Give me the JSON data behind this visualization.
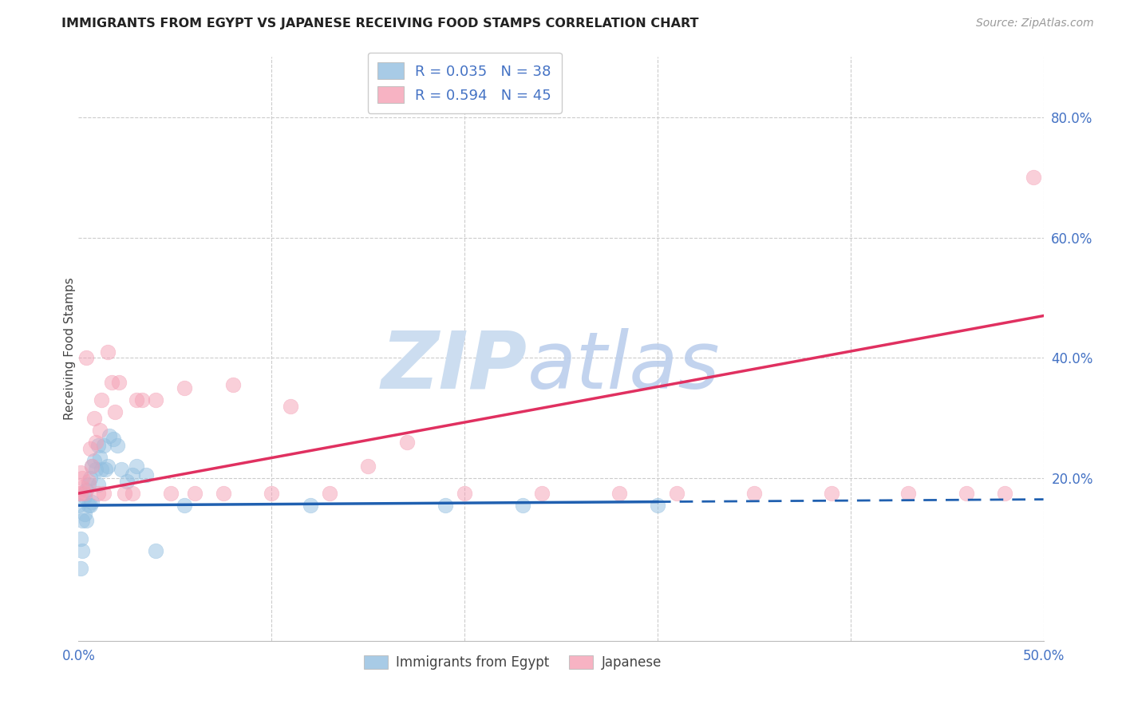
{
  "title": "IMMIGRANTS FROM EGYPT VS JAPANESE RECEIVING FOOD STAMPS CORRELATION CHART",
  "source": "Source: ZipAtlas.com",
  "ylabel": "Receiving Food Stamps",
  "xlim": [
    0.0,
    0.5
  ],
  "ylim": [
    -0.07,
    0.9
  ],
  "legend1_label": "R = 0.035   N = 38",
  "legend2_label": "R = 0.594   N = 45",
  "blue_color": "#92bfe0",
  "pink_color": "#f5a0b5",
  "trendline_blue_color": "#2060b0",
  "trendline_pink_color": "#e03060",
  "egypt_x": [
    0.0,
    0.001,
    0.001,
    0.002,
    0.002,
    0.003,
    0.003,
    0.004,
    0.004,
    0.005,
    0.005,
    0.006,
    0.006,
    0.007,
    0.007,
    0.008,
    0.009,
    0.01,
    0.01,
    0.011,
    0.012,
    0.013,
    0.014,
    0.015,
    0.016,
    0.018,
    0.02,
    0.022,
    0.025,
    0.028,
    0.03,
    0.035,
    0.04,
    0.055,
    0.12,
    0.19,
    0.23,
    0.3
  ],
  "egypt_y": [
    0.155,
    0.05,
    0.1,
    0.13,
    0.08,
    0.17,
    0.14,
    0.18,
    0.13,
    0.19,
    0.155,
    0.2,
    0.155,
    0.22,
    0.16,
    0.23,
    0.215,
    0.255,
    0.19,
    0.235,
    0.215,
    0.255,
    0.215,
    0.22,
    0.27,
    0.265,
    0.255,
    0.215,
    0.195,
    0.205,
    0.22,
    0.205,
    0.08,
    0.155,
    0.155,
    0.155,
    0.155,
    0.155
  ],
  "japanese_x": [
    0.0,
    0.001,
    0.001,
    0.002,
    0.002,
    0.003,
    0.004,
    0.005,
    0.006,
    0.007,
    0.008,
    0.009,
    0.01,
    0.011,
    0.012,
    0.013,
    0.015,
    0.017,
    0.019,
    0.021,
    0.024,
    0.028,
    0.033,
    0.04,
    0.048,
    0.06,
    0.075,
    0.1,
    0.13,
    0.17,
    0.2,
    0.24,
    0.28,
    0.31,
    0.35,
    0.39,
    0.43,
    0.46,
    0.48,
    0.495,
    0.03,
    0.055,
    0.08,
    0.11,
    0.15
  ],
  "japanese_y": [
    0.175,
    0.21,
    0.175,
    0.2,
    0.185,
    0.175,
    0.4,
    0.195,
    0.25,
    0.22,
    0.3,
    0.26,
    0.175,
    0.28,
    0.33,
    0.175,
    0.41,
    0.36,
    0.31,
    0.36,
    0.175,
    0.175,
    0.33,
    0.33,
    0.175,
    0.175,
    0.175,
    0.175,
    0.175,
    0.26,
    0.175,
    0.175,
    0.175,
    0.175,
    0.175,
    0.175,
    0.175,
    0.175,
    0.175,
    0.7,
    0.33,
    0.35,
    0.355,
    0.32,
    0.22
  ],
  "background_color": "#ffffff",
  "grid_color": "#cccccc",
  "yticks": [
    0.2,
    0.4,
    0.6,
    0.8
  ],
  "xticks": [
    0.0,
    0.1,
    0.2,
    0.3,
    0.4,
    0.5
  ],
  "trend_blue_x0": 0.0,
  "trend_blue_x_solid_end": 0.3,
  "trend_blue_x_end": 0.5,
  "trend_blue_y0": 0.155,
  "trend_blue_y_end": 0.165,
  "trend_pink_x0": 0.0,
  "trend_pink_x_end": 0.5,
  "trend_pink_y0": 0.175,
  "trend_pink_y_end": 0.47
}
